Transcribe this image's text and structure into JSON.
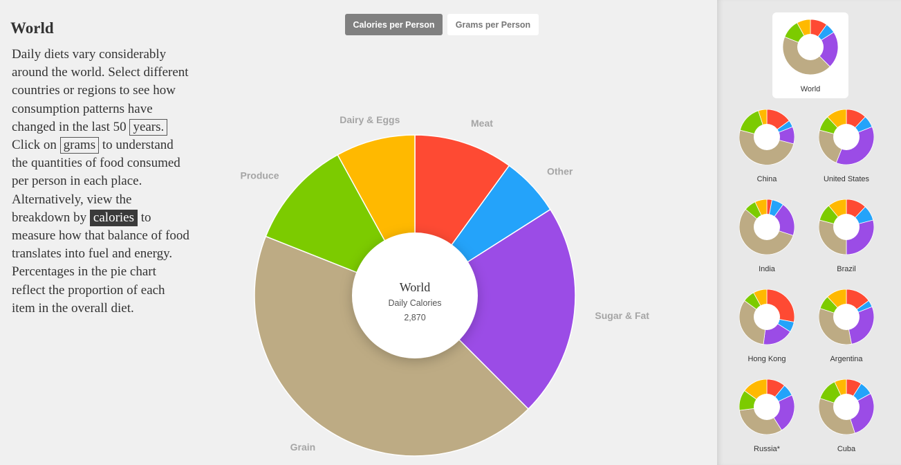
{
  "title": "World",
  "intro": {
    "part1": "Daily diets vary considerably around the world. Select different countries or regions to see how consumption patterns have changed in the last 50",
    "chip_years": "years.",
    "part2": "Click on",
    "chip_grams": "grams",
    "part3": "to understand the quantities of food consumed per person in each place. Alternatively, view the breakdown by",
    "chip_calories": "calories",
    "part4": "to measure how that balance of food translates into fuel and energy. Percentages in the pie chart reflect the proportion of each item in the overall diet."
  },
  "toggle": {
    "calories_label": "Calories per Person",
    "grams_label": "Grams per Person",
    "active": "calories"
  },
  "colors": {
    "meat": "#fe4a33",
    "other": "#24a3fa",
    "sugar_fat": "#9b4ce6",
    "grain": "#bdab84",
    "produce": "#7ccb00",
    "dairy_eggs": "#ffb900",
    "label_gray": "#a5a5a5",
    "background": "#f0f0f0",
    "sidebar": "#e8e8e8"
  },
  "chart_data": {
    "type": "pie",
    "donut": true,
    "center": {
      "title": "World",
      "subtitle": "Daily Calories",
      "value": "2,870"
    },
    "categories": [
      "Meat",
      "Other",
      "Sugar & Fat",
      "Grain",
      "Produce",
      "Dairy & Eggs"
    ],
    "values": [
      10.0,
      6.0,
      21.5,
      43.5,
      11.0,
      8.0
    ]
  },
  "regions": [
    {
      "name": "World",
      "selected": true,
      "values": [
        10.0,
        6.0,
        21.5,
        43.5,
        11.0,
        8.0
      ]
    },
    {
      "name": "China",
      "selected": false,
      "values": [
        15.0,
        4.0,
        10.0,
        50.0,
        16.0,
        5.0
      ]
    },
    {
      "name": "United States",
      "selected": false,
      "values": [
        12.0,
        7.0,
        37.0,
        23.0,
        9.0,
        12.0
      ]
    },
    {
      "name": "India",
      "selected": false,
      "values": [
        3.0,
        7.0,
        20.0,
        56.0,
        7.0,
        7.0
      ]
    },
    {
      "name": "Brazil",
      "selected": false,
      "values": [
        12.0,
        9.0,
        29.0,
        29.0,
        10.0,
        11.0
      ]
    },
    {
      "name": "Hong Kong",
      "selected": false,
      "values": [
        28.0,
        6.0,
        18.0,
        33.0,
        7.0,
        8.0
      ]
    },
    {
      "name": "Argentina",
      "selected": false,
      "values": [
        15.0,
        4.0,
        28.0,
        33.0,
        8.0,
        12.0
      ]
    },
    {
      "name": "Russia*",
      "selected": false,
      "values": [
        11.0,
        7.0,
        23.0,
        32.0,
        12.0,
        15.0
      ]
    },
    {
      "name": "Cuba",
      "selected": false,
      "values": [
        9.0,
        8.0,
        28.0,
        35.0,
        13.0,
        7.0
      ]
    }
  ]
}
